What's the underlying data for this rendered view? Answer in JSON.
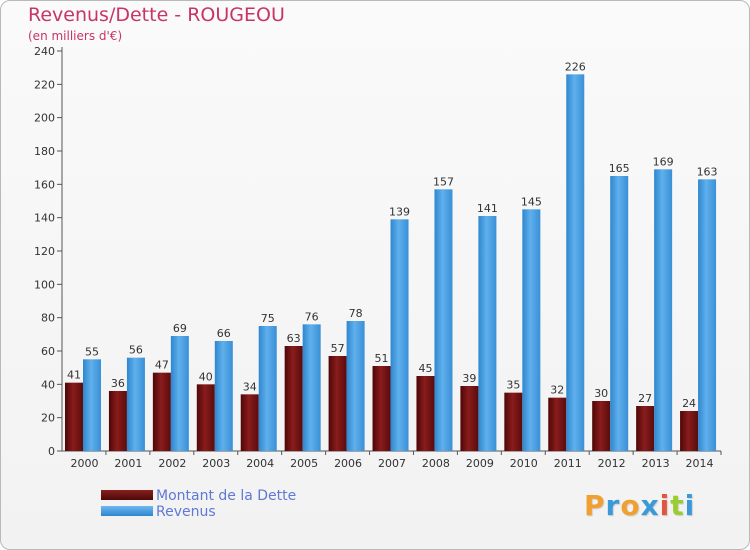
{
  "title": "Revenus/Dette - ROUGEOU",
  "subtitle": "(en milliers d'€)",
  "colors": {
    "debt": "#6b1212",
    "revenue": "#4ea3e6",
    "title": "#c8346a",
    "legend_text": "#5f79d4"
  },
  "chart_data": {
    "type": "bar",
    "categories": [
      "2000",
      "2001",
      "2002",
      "2003",
      "2004",
      "2005",
      "2006",
      "2007",
      "2008",
      "2009",
      "2010",
      "2011",
      "2012",
      "2013",
      "2014"
    ],
    "series": [
      {
        "name": "Montant de la Dette",
        "values": [
          41,
          36,
          47,
          40,
          34,
          63,
          57,
          51,
          45,
          39,
          35,
          32,
          30,
          27,
          24
        ]
      },
      {
        "name": "Revenus",
        "values": [
          55,
          56,
          69,
          66,
          75,
          76,
          78,
          139,
          157,
          141,
          145,
          226,
          165,
          169,
          163
        ]
      }
    ],
    "ylim": [
      0,
      240
    ],
    "yticks": [
      0,
      20,
      40,
      60,
      80,
      100,
      120,
      140,
      160,
      180,
      200,
      220,
      240
    ],
    "grid": false,
    "legend_position": "bottom-left"
  },
  "legend": {
    "debt_label": "Montant de la Dette",
    "revenue_label": "Revenus"
  },
  "logo": {
    "letters": [
      "P",
      "r",
      "o",
      "x",
      "i",
      "t",
      "i"
    ],
    "colors": [
      "#f0a030",
      "#3a9ad9",
      "#f0a030",
      "#3a9ad9",
      "#e2553a",
      "#9acd32",
      "#3a9ad9"
    ]
  }
}
